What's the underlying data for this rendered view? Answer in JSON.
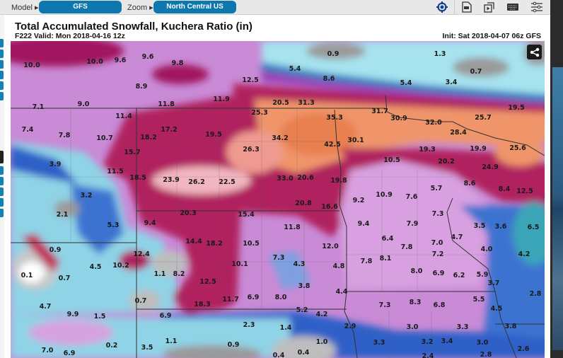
{
  "toolbar": {
    "model_label": "Model ▸",
    "model_value": "GFS",
    "zoom_label": "Zoom ▸",
    "zoom_value": "North Central US",
    "icons": [
      "crosshair-icon",
      "pdf-icon",
      "animation-icon",
      "keyboard-icon",
      "settings-sliders-icon"
    ]
  },
  "header": {
    "title": "Total Accumulated Snowfall, Kuchera Ratio (in)",
    "subtitle": "F222 Valid: Mon 2018-04-16 12z",
    "init": "Init: Sat 2018-04-07 06z GFS"
  },
  "colors": {
    "accent": "#0d77b0",
    "heavy_snow": "#b0245f",
    "very_heavy_snow": "#f0956a",
    "moderate_snow": "#c98ad6",
    "light_snow": "#2f60c8",
    "trace": "#a6e3ef",
    "none": "#9a9a9a"
  },
  "map": {
    "share_icon": "share-icon",
    "labels": [
      "10.0",
      "10.0",
      "9.6",
      "9.6",
      "9.8",
      "8.9",
      "12.5",
      "11.9",
      "11.8",
      "9.0",
      "7.1",
      "11.4",
      "25.3",
      "7.4",
      "7.8",
      "10.7",
      "17.2",
      "18.2",
      "19.5",
      "26.3",
      "15.7",
      "3.9",
      "11.5",
      "18.5",
      "23.9",
      "26.2",
      "22.5",
      "3.2",
      "0.9",
      "1.3",
      "5.4",
      "8.6",
      "5.4",
      "3.4",
      "0.7",
      "20.5",
      "31.3",
      "19.5",
      "31.7",
      "35.3",
      "30.9",
      "32.0",
      "25.7",
      "28.4",
      "34.2",
      "42.5",
      "30.1",
      "19.3",
      "19.9",
      "25.6",
      "10.5",
      "20.2",
      "24.9",
      "33.0",
      "20.6",
      "19.8",
      "8.6",
      "5.7",
      "8.4",
      "12.5",
      "10.9",
      "7.6",
      "9.2",
      "2.1",
      "20.3",
      "15.4",
      "9.4",
      "5.3",
      "14.4",
      "18.2",
      "10.5",
      "0.9",
      "12.4",
      "10.2",
      "4.5",
      "10.1",
      "1.1",
      "8.2",
      "0.1",
      "0.7",
      "12.5",
      "11.7",
      "6.9",
      "18.3",
      "0.7",
      "4.7",
      "9.9",
      "1.5",
      "6.9",
      "2.3",
      "1.1",
      "0.9",
      "0.2",
      "3.5",
      "7.0",
      "6.9",
      "20.8",
      "16.6",
      "7.3",
      "11.8",
      "9.4",
      "7.9",
      "3.5",
      "3.6",
      "6.5",
      "4.7",
      "6.4",
      "7.0",
      "12.0",
      "7.8",
      "4.0",
      "4.2",
      "7.2",
      "7.3",
      "4.3",
      "8.1",
      "7.8",
      "4.8",
      "8.0",
      "6.9",
      "6.2",
      "5.9",
      "3.7",
      "3.8",
      "2.8",
      "4.4",
      "8.0",
      "5.5",
      "7.3",
      "8.3",
      "6.8",
      "4.5",
      "5.2",
      "4.2",
      "2.9",
      "3.0",
      "3.3",
      "3.8",
      "1.4",
      "1.0",
      "3.3",
      "3.2",
      "3.4",
      "3.0",
      "2.6",
      "0.4",
      "0.4",
      "2.8",
      "2.4"
    ]
  }
}
